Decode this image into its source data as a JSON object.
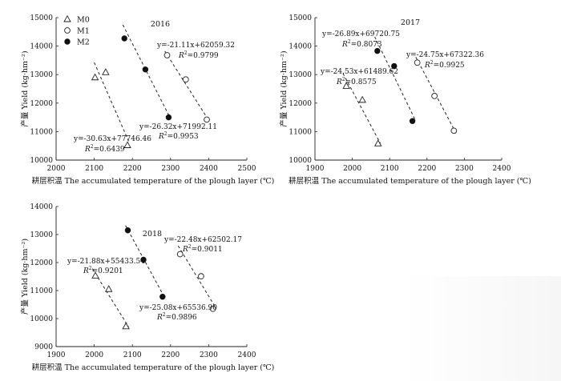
{
  "chart_data": [
    {
      "type": "scatter",
      "title": "2016",
      "xlabel": "耕层积温 The accumulated temperature of the plough layer (℃)",
      "ylabel": "产量 Yield (kg·hm⁻²)",
      "xlim": [
        2000,
        2500
      ],
      "ylim": [
        10000,
        15000
      ],
      "xticks": [
        2000,
        2100,
        2200,
        2300,
        2400,
        2500
      ],
      "yticks": [
        10000,
        11000,
        12000,
        13000,
        14000,
        15000
      ],
      "legend": {
        "placement": "top-left",
        "entries": [
          "M0",
          "M1",
          "M2"
        ]
      },
      "series": [
        {
          "name": "M0",
          "marker": "triangle",
          "x": [
            2102,
            2130,
            2187
          ],
          "y": [
            12900,
            13080,
            10520
          ],
          "fit": {
            "equation": "y=-30.63x+77746.46",
            "r2": "R²=0.6439",
            "x_range": [
              2100,
              2190
            ]
          }
        },
        {
          "name": "M1",
          "marker": "open-circle",
          "x": [
            2291,
            2340,
            2395
          ],
          "y": [
            13680,
            12830,
            11420
          ],
          "fit": {
            "equation": "y=-21.11x+62059.32",
            "r2": "R²=0.9799",
            "x_range": [
              2285,
              2400
            ]
          }
        },
        {
          "name": "M2",
          "marker": "filled-circle",
          "x": [
            2179,
            2234,
            2295
          ],
          "y": [
            14270,
            13180,
            11500
          ],
          "fit": {
            "equation": "y=-26.32x+71992.11",
            "r2": "R²=0.9953",
            "x_range": [
              2175,
              2300
            ]
          }
        }
      ]
    },
    {
      "type": "scatter",
      "title": "2017",
      "xlabel": "耕层积温 The accumulated temperature of the plough layer (℃)",
      "ylabel": "产量 Yield (kg·hm⁻²)",
      "xlim": [
        1900,
        2400
      ],
      "ylim": [
        10000,
        15000
      ],
      "xticks": [
        1900,
        2000,
        2100,
        2200,
        2300,
        2400
      ],
      "yticks": [
        10000,
        11000,
        12000,
        13000,
        14000,
        15000
      ],
      "series": [
        {
          "name": "M0",
          "marker": "triangle",
          "x": [
            1984,
            2027,
            2069
          ],
          "y": [
            12600,
            12110,
            10580
          ],
          "fit": {
            "equation": "y=-24.53x+61489.62",
            "r2": "R²=0.8575",
            "x_range": [
              1975,
              2075
            ]
          }
        },
        {
          "name": "M1",
          "marker": "open-circle",
          "x": [
            2174,
            2220,
            2272
          ],
          "y": [
            13420,
            12250,
            11030
          ],
          "fit": {
            "equation": "y=-24.75x+67322.36",
            "r2": "R²=0.9925",
            "x_range": [
              2170,
              2278
            ]
          }
        },
        {
          "name": "M2",
          "marker": "filled-circle",
          "x": [
            2067,
            2112,
            2161
          ],
          "y": [
            13830,
            13300,
            11370
          ],
          "fit": {
            "equation": "y=-26.89x+69720.75",
            "r2": "R²=0.8073",
            "x_range": [
              2060,
              2168
            ]
          }
        }
      ]
    },
    {
      "type": "scatter",
      "title": "2018",
      "xlabel": "耕层积温 The accumulated temperature of the plough layer (℃)",
      "ylabel": "产量 Yield (kg·hm⁻²)",
      "xlim": [
        1900,
        2400
      ],
      "ylim": [
        9000,
        14000
      ],
      "xticks": [
        1900,
        2000,
        2100,
        2200,
        2300,
        2400
      ],
      "yticks": [
        9000,
        10000,
        11000,
        12000,
        13000,
        14000
      ],
      "series": [
        {
          "name": "M0",
          "marker": "triangle",
          "x": [
            2003,
            2038,
            2083
          ],
          "y": [
            11530,
            11050,
            9720
          ],
          "fit": {
            "equation": "y=-21.88x+55433.54",
            "r2": "R²=0.9201",
            "x_range": [
              1995,
              2090
            ]
          }
        },
        {
          "name": "M1",
          "marker": "open-circle",
          "x": [
            2225,
            2280,
            2311
          ],
          "y": [
            12300,
            11510,
            10350
          ],
          "fit": {
            "equation": "y=-22.48x+62502.17",
            "r2": "R²=0.9011",
            "x_range": [
              2220,
              2318
            ]
          }
        },
        {
          "name": "M2",
          "marker": "filled-circle",
          "x": [
            2088,
            2129,
            2179
          ],
          "y": [
            13150,
            12100,
            10780
          ],
          "fit": {
            "equation": "y=-25.08x+65536.90",
            "r2": "R²=0.9896",
            "x_range": [
              2082,
              2185
            ]
          }
        }
      ]
    }
  ]
}
